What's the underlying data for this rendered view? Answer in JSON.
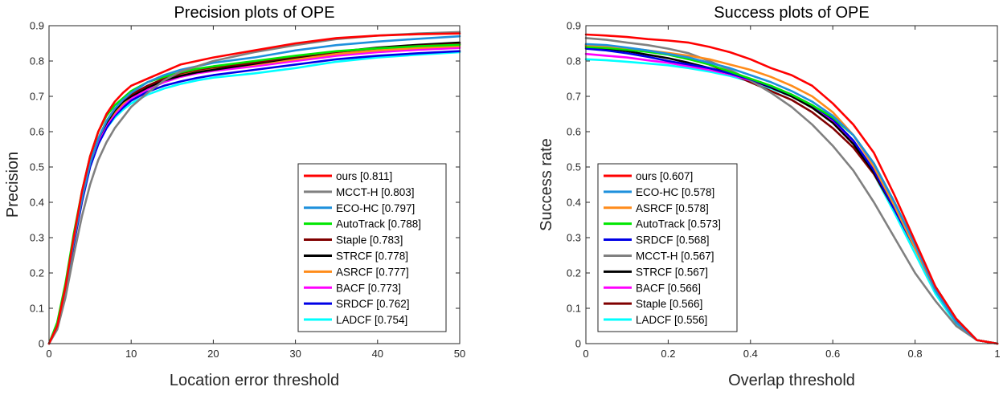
{
  "chart_data": [
    {
      "type": "line",
      "title": "Precision plots of OPE",
      "xlabel": "Location error threshold",
      "ylabel": "Precision",
      "xlim": [
        0,
        50
      ],
      "ylim": [
        0,
        0.9
      ],
      "xticks": [
        0,
        10,
        20,
        30,
        40,
        50
      ],
      "xtick_labels": [
        "0",
        "10",
        "20",
        "30",
        "40",
        "50"
      ],
      "yticks": [
        0,
        0.1,
        0.2,
        0.3,
        0.4,
        0.5,
        0.6,
        0.7,
        0.8,
        0.9
      ],
      "ytick_labels": [
        "0",
        "0.1",
        "0.2",
        "0.3",
        "0.4",
        "0.5",
        "0.6",
        "0.7",
        "0.8",
        "0.9"
      ],
      "legend_position": "bottom-right",
      "x": [
        0,
        1,
        2,
        3,
        4,
        5,
        6,
        7,
        8,
        9,
        10,
        12,
        14,
        16,
        18,
        20,
        25,
        30,
        35,
        40,
        45,
        50
      ],
      "series": [
        {
          "name": "ours",
          "score": "0.811",
          "label": "ours [0.811]",
          "color": "#ff0000",
          "values": [
            0,
            0.05,
            0.16,
            0.3,
            0.43,
            0.53,
            0.6,
            0.65,
            0.685,
            0.71,
            0.73,
            0.75,
            0.77,
            0.79,
            0.8,
            0.81,
            0.83,
            0.85,
            0.865,
            0.872,
            0.876,
            0.878
          ]
        },
        {
          "name": "MCCT-H",
          "score": "0.803",
          "label": "MCCT-H [0.803]",
          "color": "#808080",
          "values": [
            0,
            0.04,
            0.13,
            0.25,
            0.36,
            0.45,
            0.52,
            0.57,
            0.61,
            0.64,
            0.67,
            0.71,
            0.745,
            0.77,
            0.785,
            0.8,
            0.825,
            0.845,
            0.862,
            0.872,
            0.878,
            0.882
          ]
        },
        {
          "name": "ECO-HC",
          "score": "0.797",
          "label": "ECO-HC [0.797]",
          "color": "#1e90dc",
          "values": [
            0,
            0.05,
            0.15,
            0.29,
            0.41,
            0.51,
            0.58,
            0.63,
            0.665,
            0.69,
            0.71,
            0.74,
            0.76,
            0.775,
            0.785,
            0.795,
            0.81,
            0.83,
            0.845,
            0.855,
            0.863,
            0.87
          ]
        },
        {
          "name": "AutoTrack",
          "score": "0.788",
          "label": "AutoTrack [0.788]",
          "color": "#00e600",
          "values": [
            0,
            0.06,
            0.17,
            0.31,
            0.43,
            0.53,
            0.6,
            0.645,
            0.675,
            0.695,
            0.715,
            0.74,
            0.755,
            0.768,
            0.778,
            0.785,
            0.8,
            0.815,
            0.828,
            0.836,
            0.842,
            0.846
          ]
        },
        {
          "name": "Staple",
          "score": "0.783",
          "label": "Staple [0.783]",
          "color": "#800000",
          "values": [
            0,
            0.05,
            0.15,
            0.29,
            0.41,
            0.51,
            0.58,
            0.63,
            0.665,
            0.69,
            0.705,
            0.73,
            0.75,
            0.765,
            0.775,
            0.782,
            0.795,
            0.812,
            0.826,
            0.836,
            0.843,
            0.848
          ]
        },
        {
          "name": "STRCF",
          "score": "0.778",
          "label": "STRCF [0.778]",
          "color": "#000000",
          "values": [
            0,
            0.05,
            0.15,
            0.29,
            0.41,
            0.51,
            0.58,
            0.625,
            0.66,
            0.685,
            0.7,
            0.725,
            0.745,
            0.758,
            0.768,
            0.775,
            0.792,
            0.81,
            0.826,
            0.838,
            0.846,
            0.852
          ]
        },
        {
          "name": "ASRCF",
          "score": "0.777",
          "label": "ASRCF [0.777]",
          "color": "#ff8c1a",
          "values": [
            0,
            0.05,
            0.15,
            0.29,
            0.41,
            0.51,
            0.58,
            0.625,
            0.655,
            0.68,
            0.7,
            0.725,
            0.745,
            0.76,
            0.77,
            0.778,
            0.79,
            0.805,
            0.82,
            0.83,
            0.837,
            0.842
          ]
        },
        {
          "name": "BACF",
          "score": "0.773",
          "label": "BACF [0.773]",
          "color": "#ff00ff",
          "values": [
            0,
            0.05,
            0.15,
            0.29,
            0.41,
            0.51,
            0.575,
            0.62,
            0.65,
            0.675,
            0.695,
            0.72,
            0.74,
            0.755,
            0.765,
            0.772,
            0.785,
            0.8,
            0.815,
            0.825,
            0.832,
            0.837
          ]
        },
        {
          "name": "SRDCF",
          "score": "0.762",
          "label": "SRDCF [0.762]",
          "color": "#0000e6",
          "values": [
            0,
            0.05,
            0.14,
            0.28,
            0.4,
            0.5,
            0.565,
            0.61,
            0.645,
            0.668,
            0.688,
            0.713,
            0.73,
            0.742,
            0.752,
            0.76,
            0.775,
            0.79,
            0.805,
            0.815,
            0.822,
            0.828
          ]
        },
        {
          "name": "LADCF",
          "score": "0.754",
          "label": "LADCF [0.754]",
          "color": "#00ffff",
          "values": [
            0,
            0.05,
            0.15,
            0.29,
            0.41,
            0.5,
            0.565,
            0.61,
            0.64,
            0.662,
            0.68,
            0.705,
            0.722,
            0.735,
            0.745,
            0.753,
            0.765,
            0.78,
            0.798,
            0.81,
            0.818,
            0.825
          ]
        }
      ]
    },
    {
      "type": "line",
      "title": "Success plots of OPE",
      "xlabel": "Overlap threshold",
      "ylabel": "Success rate",
      "xlim": [
        0,
        1
      ],
      "ylim": [
        0,
        0.9
      ],
      "xticks": [
        0,
        0.2,
        0.4,
        0.6,
        0.8,
        1
      ],
      "xtick_labels": [
        "0",
        "0.2",
        "0.4",
        "0.6",
        "0.8",
        "1"
      ],
      "yticks": [
        0,
        0.1,
        0.2,
        0.3,
        0.4,
        0.5,
        0.6,
        0.7,
        0.8,
        0.9
      ],
      "ytick_labels": [
        "0",
        "0.1",
        "0.2",
        "0.3",
        "0.4",
        "0.5",
        "0.6",
        "0.7",
        "0.8",
        "0.9"
      ],
      "legend_position": "bottom-left",
      "x": [
        0,
        0.05,
        0.1,
        0.15,
        0.2,
        0.25,
        0.3,
        0.35,
        0.4,
        0.45,
        0.5,
        0.55,
        0.6,
        0.65,
        0.7,
        0.75,
        0.8,
        0.85,
        0.9,
        0.95,
        1.0
      ],
      "series": [
        {
          "name": "ours",
          "score": "0.607",
          "label": "ours [0.607]",
          "color": "#ff0000",
          "values": [
            0.875,
            0.872,
            0.868,
            0.862,
            0.858,
            0.852,
            0.84,
            0.825,
            0.805,
            0.78,
            0.76,
            0.73,
            0.68,
            0.62,
            0.54,
            0.42,
            0.29,
            0.16,
            0.07,
            0.01,
            0
          ]
        },
        {
          "name": "ECO-HC",
          "score": "0.578",
          "label": "ECO-HC [0.578]",
          "color": "#1e90dc",
          "values": [
            0.848,
            0.845,
            0.838,
            0.83,
            0.82,
            0.81,
            0.795,
            0.78,
            0.76,
            0.74,
            0.715,
            0.685,
            0.645,
            0.59,
            0.51,
            0.4,
            0.28,
            0.15,
            0.06,
            0.01,
            0
          ]
        },
        {
          "name": "ASRCF",
          "score": "0.578",
          "label": "ASRCF [0.578]",
          "color": "#ff8c1a",
          "values": [
            0.845,
            0.842,
            0.837,
            0.83,
            0.823,
            0.815,
            0.805,
            0.79,
            0.775,
            0.755,
            0.73,
            0.7,
            0.655,
            0.59,
            0.5,
            0.39,
            0.27,
            0.15,
            0.06,
            0.01,
            0
          ]
        },
        {
          "name": "AutoTrack",
          "score": "0.573",
          "label": "AutoTrack [0.573]",
          "color": "#00e600",
          "values": [
            0.84,
            0.837,
            0.832,
            0.826,
            0.818,
            0.805,
            0.79,
            0.77,
            0.75,
            0.73,
            0.705,
            0.675,
            0.64,
            0.59,
            0.51,
            0.4,
            0.28,
            0.15,
            0.06,
            0.01,
            0
          ]
        },
        {
          "name": "SRDCF",
          "score": "0.568",
          "label": "SRDCF [0.568]",
          "color": "#0000e6",
          "values": [
            0.835,
            0.83,
            0.822,
            0.812,
            0.8,
            0.79,
            0.78,
            0.765,
            0.748,
            0.728,
            0.705,
            0.675,
            0.635,
            0.575,
            0.49,
            0.38,
            0.27,
            0.15,
            0.065,
            0.01,
            0
          ]
        },
        {
          "name": "MCCT-H",
          "score": "0.567",
          "label": "MCCT-H [0.567]",
          "color": "#808080",
          "values": [
            0.865,
            0.86,
            0.852,
            0.845,
            0.835,
            0.822,
            0.8,
            0.775,
            0.745,
            0.71,
            0.67,
            0.62,
            0.56,
            0.49,
            0.4,
            0.3,
            0.2,
            0.12,
            0.05,
            0.01,
            0
          ]
        },
        {
          "name": "STRCF",
          "score": "0.567",
          "label": "STRCF [0.567]",
          "color": "#000000",
          "values": [
            0.84,
            0.835,
            0.828,
            0.818,
            0.808,
            0.795,
            0.78,
            0.765,
            0.748,
            0.725,
            0.7,
            0.668,
            0.625,
            0.565,
            0.485,
            0.38,
            0.27,
            0.16,
            0.07,
            0.01,
            0
          ]
        },
        {
          "name": "BACF",
          "score": "0.566",
          "label": "BACF [0.566]",
          "color": "#ff00ff",
          "values": [
            0.82,
            0.815,
            0.81,
            0.802,
            0.795,
            0.785,
            0.775,
            0.762,
            0.745,
            0.725,
            0.7,
            0.67,
            0.63,
            0.57,
            0.49,
            0.38,
            0.27,
            0.15,
            0.065,
            0.01,
            0
          ]
        },
        {
          "name": "Staple",
          "score": "0.566",
          "label": "Staple [0.566]",
          "color": "#800000",
          "values": [
            0.845,
            0.84,
            0.835,
            0.828,
            0.82,
            0.81,
            0.79,
            0.765,
            0.74,
            0.715,
            0.69,
            0.655,
            0.61,
            0.555,
            0.48,
            0.38,
            0.27,
            0.16,
            0.07,
            0.01,
            0
          ]
        },
        {
          "name": "LADCF",
          "score": "0.556",
          "label": "LADCF [0.556]",
          "color": "#00ffff",
          "values": [
            0.805,
            0.802,
            0.798,
            0.793,
            0.788,
            0.78,
            0.77,
            0.758,
            0.742,
            0.722,
            0.7,
            0.67,
            0.63,
            0.565,
            0.48,
            0.37,
            0.255,
            0.14,
            0.055,
            0.01,
            0
          ]
        }
      ]
    }
  ]
}
